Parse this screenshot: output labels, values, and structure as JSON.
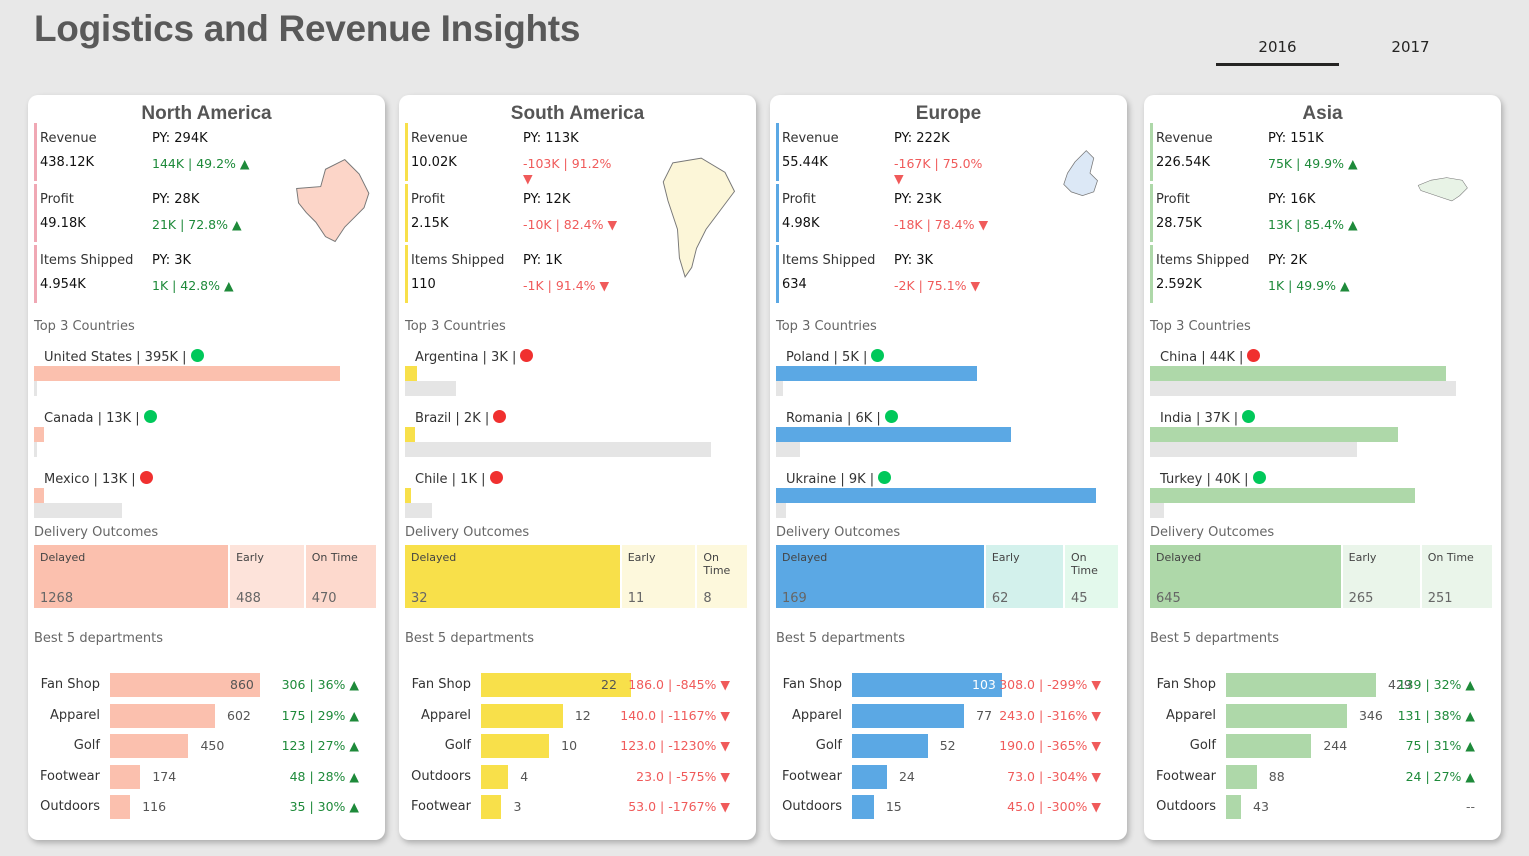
{
  "header": {
    "title": "Logistics and Revenue Insights",
    "years": [
      {
        "label": "2016",
        "active": true
      },
      {
        "label": "2017",
        "active": false
      }
    ]
  },
  "labels": {
    "revenue": "Revenue",
    "profit": "Profit",
    "items_shipped": "Items Shipped",
    "top3": "Top 3 Countries",
    "delivery": "Delivery Outcomes",
    "best5": "Best 5 departments",
    "delayed": "Delayed",
    "early": "Early",
    "on_time": "On Time"
  },
  "colors": {
    "up": "#1e8a3a",
    "down": "#f05a5a",
    "dot_green": "#00c85a",
    "dot_red": "#f0302f"
  },
  "regions": [
    {
      "name": "North America",
      "accent": "#fbc0ae",
      "kpi_bar": "#f0a8b4",
      "tile_colors": [
        "#fbc0ae",
        "#fde3da",
        "#fdd9cd"
      ],
      "map_fill": "#fcd5c8",
      "map_icon": "north-america-map-icon",
      "kpis": [
        {
          "label": "Revenue",
          "value": "438.12K",
          "py": "PY: 294K",
          "delta": "144K | 49.2% ▲",
          "trend": "up"
        },
        {
          "label": "Profit",
          "value": "49.18K",
          "py": "PY: 28K",
          "delta": "21K | 72.8% ▲",
          "trend": "up"
        },
        {
          "label": "Items Shipped",
          "value": "4.954K",
          "py": "PY: 3K",
          "delta": "1K | 42.8% ▲",
          "trend": "up"
        }
      ],
      "countries": [
        {
          "label": "United States | 395K |",
          "status": "green",
          "current_pct": 0.9,
          "prev_pct": 0.005
        },
        {
          "label": "Canada | 13K |",
          "status": "green",
          "current_pct": 0.03,
          "prev_pct": 0.005
        },
        {
          "label": "Mexico | 13K |",
          "status": "red",
          "current_pct": 0.03,
          "prev_pct": 0.26
        }
      ],
      "delivery": [
        {
          "label": "Delayed",
          "value": "1268",
          "share": 0.57
        },
        {
          "label": "Early",
          "value": "488",
          "share": 0.22
        },
        {
          "label": "On Time",
          "value": "470",
          "share": 0.21
        }
      ],
      "departments": [
        {
          "name": "Fan Shop",
          "value": 860,
          "label": "860",
          "delta": "306 | 36% ▲",
          "trend": "up",
          "inside": true
        },
        {
          "name": "Apparel",
          "value": 602,
          "label": "602",
          "delta": "175 | 29% ▲",
          "trend": "up"
        },
        {
          "name": "Golf",
          "value": 450,
          "label": "450",
          "delta": "123 | 27% ▲",
          "trend": "up"
        },
        {
          "name": "Footwear",
          "value": 174,
          "label": "174",
          "delta": "48 | 28% ▲",
          "trend": "up"
        },
        {
          "name": "Outdoors",
          "value": 116,
          "label": "116",
          "delta": "35 | 30% ▲",
          "trend": "up"
        }
      ],
      "dept_max": 860
    },
    {
      "name": "South America",
      "accent": "#f8e04a",
      "kpi_bar": "#f8e04a",
      "tile_colors": [
        "#f8e04a",
        "#fdf8dc",
        "#fdf8dc"
      ],
      "map_fill": "#fcf6d8",
      "map_icon": "south-america-map-icon",
      "kpis": [
        {
          "label": "Revenue",
          "value": "10.02K",
          "py": "PY: 113K",
          "delta": "-103K | 91.2% ▼",
          "trend": "down"
        },
        {
          "label": "Profit",
          "value": "2.15K",
          "py": "PY: 12K",
          "delta": "-10K | 82.4% ▼",
          "trend": "down"
        },
        {
          "label": "Items Shipped",
          "value": "110",
          "py": "PY: 1K",
          "delta": "-1K | 91.4% ▼",
          "trend": "down"
        }
      ],
      "countries": [
        {
          "label": "Argentina | 3K |",
          "status": "red",
          "current_pct": 0.035,
          "prev_pct": 0.15
        },
        {
          "label": "Brazil | 2K |",
          "status": "red",
          "current_pct": 0.03,
          "prev_pct": 0.9
        },
        {
          "label": "Chile | 1K |",
          "status": "red",
          "current_pct": 0.018,
          "prev_pct": 0.08
        }
      ],
      "delivery": [
        {
          "label": "Delayed",
          "value": "32",
          "share": 0.63
        },
        {
          "label": "Early",
          "value": "11",
          "share": 0.22
        },
        {
          "label": "On Time",
          "value": "8",
          "share": 0.15
        }
      ],
      "departments": [
        {
          "name": "Fan Shop",
          "value": 22,
          "label": "22",
          "delta": "186.0 | -845% ▼",
          "trend": "down",
          "inside": true
        },
        {
          "name": "Apparel",
          "value": 12,
          "label": "12",
          "delta": "140.0 | -1167% ▼",
          "trend": "down"
        },
        {
          "name": "Golf",
          "value": 10,
          "label": "10",
          "delta": "123.0 | -1230% ▼",
          "trend": "down"
        },
        {
          "name": "Outdoors",
          "value": 4,
          "label": "4",
          "delta": "23.0 | -575% ▼",
          "trend": "down"
        },
        {
          "name": "Footwear",
          "value": 3,
          "label": "3",
          "delta": "53.0 | -1767% ▼",
          "trend": "down"
        }
      ],
      "dept_max": 22
    },
    {
      "name": "Europe",
      "accent": "#5ba8e4",
      "kpi_bar": "#5ba8e4",
      "tile_colors": [
        "#5ba8e4",
        "#d3f1ec",
        "#e3f9ec"
      ],
      "map_fill": "#dce8f6",
      "map_icon": "europe-map-icon",
      "kpis": [
        {
          "label": "Revenue",
          "value": "55.44K",
          "py": "PY: 222K",
          "delta": "-167K | 75.0% ▼",
          "trend": "down"
        },
        {
          "label": "Profit",
          "value": "4.98K",
          "py": "PY: 23K",
          "delta": "-18K | 78.4% ▼",
          "trend": "down"
        },
        {
          "label": "Items Shipped",
          "value": "634",
          "py": "PY: 3K",
          "delta": "-2K | 75.1% ▼",
          "trend": "down"
        }
      ],
      "countries": [
        {
          "label": "Poland | 5K |",
          "status": "green",
          "current_pct": 0.59,
          "prev_pct": 0.02
        },
        {
          "label": "Romania | 6K |",
          "status": "green",
          "current_pct": 0.69,
          "prev_pct": 0.07
        },
        {
          "label": "Ukraine | 9K |",
          "status": "green",
          "current_pct": 0.94,
          "prev_pct": 0.03
        }
      ],
      "delivery": [
        {
          "label": "Delayed",
          "value": "169",
          "share": 0.61
        },
        {
          "label": "Early",
          "value": "62",
          "share": 0.23
        },
        {
          "label": "On Time",
          "value": "45",
          "share": 0.16
        }
      ],
      "departments": [
        {
          "name": "Fan Shop",
          "value": 103,
          "label": "103",
          "delta": "308.0 | -299% ▼",
          "trend": "down",
          "inside": true
        },
        {
          "name": "Apparel",
          "value": 77,
          "label": "77",
          "delta": "243.0 | -316% ▼",
          "trend": "down"
        },
        {
          "name": "Golf",
          "value": 52,
          "label": "52",
          "delta": "190.0 | -365% ▼",
          "trend": "down"
        },
        {
          "name": "Footwear",
          "value": 24,
          "label": "24",
          "delta": "73.0 | -304% ▼",
          "trend": "down"
        },
        {
          "name": "Outdoors",
          "value": 15,
          "label": "15",
          "delta": "45.0 | -300% ▼",
          "trend": "down"
        }
      ],
      "dept_max": 103
    },
    {
      "name": "Asia",
      "accent": "#aed8a9",
      "kpi_bar": "#aed8a9",
      "tile_colors": [
        "#aed8a9",
        "#eaf5ea",
        "#eaf5ea"
      ],
      "map_fill": "#e8f3e6",
      "map_icon": "asia-map-icon",
      "kpis": [
        {
          "label": "Revenue",
          "value": "226.54K",
          "py": "PY: 151K",
          "delta": "75K | 49.9% ▲",
          "trend": "up"
        },
        {
          "label": "Profit",
          "value": "28.75K",
          "py": "PY: 16K",
          "delta": "13K | 85.4% ▲",
          "trend": "up"
        },
        {
          "label": "Items Shipped",
          "value": "2.592K",
          "py": "PY: 2K",
          "delta": "1K | 49.9% ▲",
          "trend": "up"
        }
      ],
      "countries": [
        {
          "label": "China | 44K |",
          "status": "red",
          "current_pct": 0.87,
          "prev_pct": 0.9
        },
        {
          "label": "India | 37K |",
          "status": "green",
          "current_pct": 0.73,
          "prev_pct": 0.61
        },
        {
          "label": "Turkey | 40K |",
          "status": "green",
          "current_pct": 0.78,
          "prev_pct": 0.04
        }
      ],
      "delivery": [
        {
          "label": "Delayed",
          "value": "645",
          "share": 0.56
        },
        {
          "label": "Early",
          "value": "265",
          "share": 0.23
        },
        {
          "label": "On Time",
          "value": "251",
          "share": 0.21
        }
      ],
      "departments": [
        {
          "name": "Fan Shop",
          "value": 429,
          "label": "429",
          "delta": "139 | 32% ▲",
          "trend": "up"
        },
        {
          "name": "Apparel",
          "value": 346,
          "label": "346",
          "delta": "131 | 38% ▲",
          "trend": "up"
        },
        {
          "name": "Golf",
          "value": 244,
          "label": "244",
          "delta": "75 | 31% ▲",
          "trend": "up"
        },
        {
          "name": "Footwear",
          "value": 88,
          "label": "88",
          "delta": "24 | 27% ▲",
          "trend": "up"
        },
        {
          "name": "Outdoors",
          "value": 43,
          "label": "43",
          "delta": "--",
          "trend": "none"
        }
      ],
      "dept_max": 429
    }
  ]
}
